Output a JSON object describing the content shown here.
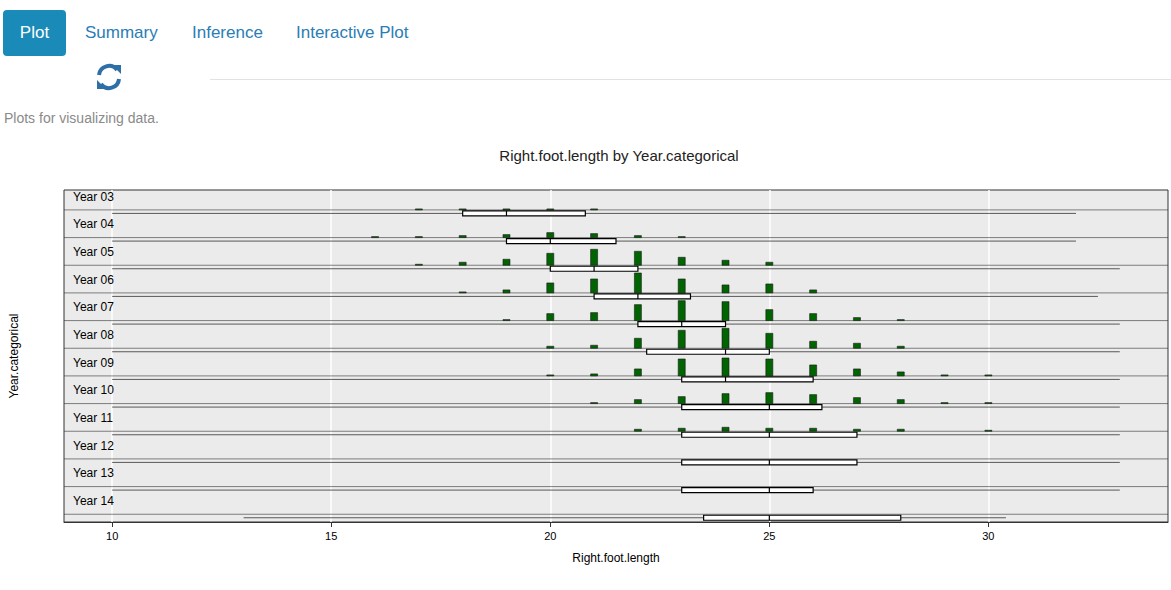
{
  "page": {
    "tabs": [
      "Plot",
      "Summary",
      "Inference",
      "Interactive Plot"
    ],
    "active_tab": "Plot",
    "description": "Plots for visualizing data."
  },
  "chart_data": {
    "type": "boxplot",
    "title": "Right.foot.length by Year.categorical",
    "x_label": "Right.foot.length",
    "y_label": "Year.categorical",
    "categories": [
      "Year 03",
      "Year 04",
      "Year 05",
      "Year 06",
      "Year 07",
      "Year 08",
      "Year 09",
      "Year 10",
      "Year 11",
      "Year 12",
      "Year 13",
      "Year 14"
    ],
    "xlim": [
      8.9,
      34.1
    ],
    "xticks": [
      10,
      15,
      20,
      25,
      30
    ],
    "grid": true,
    "tick_labels": "x",
    "color": "#006400",
    "boxes": [
      {
        "min": 10,
        "q1": 18,
        "median": 19,
        "q3": 20.8,
        "max": 32
      },
      {
        "min": 10,
        "q1": 19,
        "median": 20,
        "q3": 21.5,
        "max": 32
      },
      {
        "min": 10,
        "q1": 20,
        "median": 21,
        "q3": 22,
        "max": 33
      },
      {
        "min": 10,
        "q1": 21,
        "median": 22,
        "q3": 23.2,
        "max": 32.5
      },
      {
        "min": 10,
        "q1": 22,
        "median": 23,
        "q3": 24,
        "max": 33
      },
      {
        "min": 10,
        "q1": 22.2,
        "median": 24,
        "q3": 25,
        "max": 33
      },
      {
        "min": 10,
        "q1": 23,
        "median": 24,
        "q3": 26,
        "max": 33
      },
      {
        "min": 10,
        "q1": 23,
        "median": 25,
        "q3": 26.2,
        "max": 33
      },
      {
        "min": 10,
        "q1": 23,
        "median": 25,
        "q3": 27,
        "max": 33
      },
      {
        "min": 10,
        "q1": 23,
        "median": 25,
        "q3": 27,
        "max": 33
      },
      {
        "min": 10,
        "q1": 23,
        "median": 25,
        "q3": 26,
        "max": 33
      },
      {
        "min": 13,
        "q1": 23.5,
        "median": 25,
        "q3": 28,
        "max": 30.4
      }
    ],
    "histogram": {
      "x": [
        10,
        11,
        12,
        13,
        14,
        15,
        16,
        17,
        18,
        19,
        20,
        21,
        22,
        23,
        24,
        25,
        26,
        27,
        28,
        29,
        30,
        31,
        32,
        33
      ],
      "counts": [
        [
          0,
          0,
          0,
          0,
          0,
          0,
          0,
          1,
          1,
          1,
          1,
          1,
          0,
          0,
          0,
          0,
          0,
          0,
          0,
          0,
          0,
          0,
          0,
          0
        ],
        [
          0,
          0,
          0,
          0,
          0,
          0,
          1,
          1,
          2,
          3,
          5,
          4,
          2,
          1,
          0,
          0,
          0,
          0,
          0,
          0,
          0,
          0,
          0,
          0
        ],
        [
          0,
          0,
          0,
          0,
          0,
          0,
          0,
          1,
          3,
          6,
          12,
          16,
          14,
          8,
          5,
          3,
          0,
          0,
          0,
          0,
          0,
          0,
          0,
          0
        ],
        [
          0,
          0,
          0,
          0,
          0,
          0,
          0,
          0,
          1,
          3,
          10,
          14,
          20,
          14,
          8,
          9,
          3,
          0,
          0,
          0,
          0,
          0,
          0,
          0
        ],
        [
          0,
          0,
          0,
          0,
          0,
          0,
          0,
          0,
          0,
          1,
          7,
          8,
          16,
          20,
          19,
          11,
          7,
          3,
          1,
          0,
          0,
          0,
          0,
          0
        ],
        [
          0,
          0,
          0,
          0,
          0,
          0,
          0,
          0,
          0,
          0,
          2,
          3,
          10,
          18,
          20,
          15,
          7,
          5,
          2,
          0,
          0,
          0,
          0,
          0
        ],
        [
          0,
          0,
          0,
          0,
          0,
          0,
          0,
          0,
          0,
          0,
          1,
          2,
          7,
          17,
          18,
          17,
          11,
          7,
          4,
          1,
          1,
          0,
          0,
          0
        ],
        [
          0,
          0,
          0,
          0,
          0,
          0,
          0,
          0,
          0,
          0,
          0,
          1,
          4,
          7,
          10,
          11,
          9,
          6,
          4,
          1,
          1,
          0,
          0,
          0
        ],
        [
          0,
          0,
          0,
          0,
          0,
          0,
          0,
          0,
          0,
          0,
          0,
          0,
          2,
          3,
          4,
          3,
          3,
          2,
          2,
          0,
          1,
          0,
          0,
          0
        ],
        [
          0,
          0,
          0,
          0,
          0,
          0,
          0,
          0,
          0,
          0,
          0,
          0,
          0,
          0,
          0,
          0,
          0,
          0,
          0,
          0,
          0,
          0,
          0,
          0
        ],
        [
          0,
          0,
          0,
          0,
          0,
          0,
          0,
          0,
          0,
          0,
          0,
          0,
          0,
          0,
          0,
          0,
          0,
          0,
          0,
          0,
          0,
          0,
          0,
          0
        ],
        [
          0,
          0,
          0,
          0,
          0,
          0,
          0,
          0,
          0,
          0,
          0,
          0,
          0,
          0,
          0,
          0,
          0,
          0,
          0,
          0,
          0,
          0,
          0,
          0
        ]
      ]
    }
  }
}
